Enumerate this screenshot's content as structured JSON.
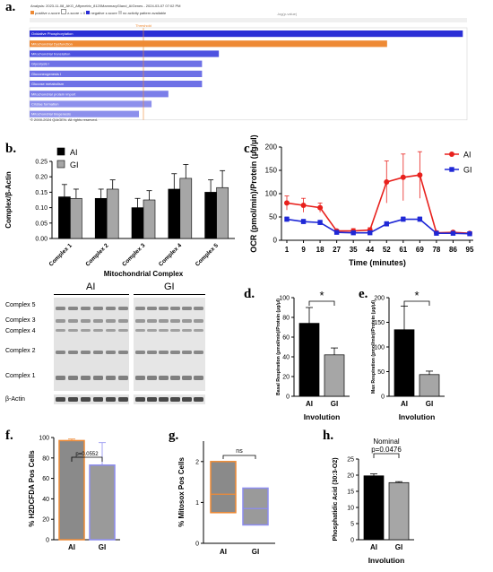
{
  "panel_labels": {
    "a": "a.",
    "b": "b.",
    "c": "c.",
    "d": "d.",
    "e": "e.",
    "f": "f.",
    "g": "g.",
    "h": "h."
  },
  "panel_a": {
    "header_line": "Analysis: 2023-11-08_AKG_Affymetrix_8120MammaryGland_AIGenes - 2024-03-07 07:02 PM",
    "legend_orange": "positive z-score",
    "legend_zero": "z-score = 0",
    "legend_blue": "negative z-score",
    "legend_none": "no activity pattern available",
    "axis_title": "-log(p-value)",
    "threshold_label": "Threshold",
    "copyright": "© 2000-2024 QIAGEN. All rights reserved.",
    "colors": {
      "blue": "#2b2fd6",
      "orange": "#ee8a35",
      "light1": "#4e52e0",
      "light2": "#6e71e6",
      "light3": "#8d90ec"
    }
  },
  "panel_b_text": {
    "ai_label": "AI",
    "gi_label": "GI",
    "blot_labels": [
      "Complex 5",
      "Complex 3",
      "Complex 4",
      "Complex 2",
      "Complex 1",
      "β-Actin"
    ]
  },
  "panel_d_text": {
    "sig": "*"
  },
  "panel_e_text": {
    "sig": "*"
  },
  "panel_f_text": {
    "pvalue": "p=0.0552"
  },
  "panel_g_text": {
    "ns": "ns"
  },
  "panel_h_text": {
    "nominal": "Nominal",
    "pvalue": "p=0.0476"
  },
  "chart_data": [
    {
      "id": "a",
      "type": "bar",
      "orientation": "horizontal",
      "categories": [
        "Oxidative Phosphorylation",
        "Mitochondrial Dysfunction",
        "Mitochondrial translation",
        "Glycolysis I",
        "Gluconeogenesis I",
        "Glucose metabolism",
        "Mitochondrial protein import",
        "Cristae formation",
        "Mitochondrial biogenesis"
      ],
      "values": [
        51.5,
        42.5,
        22.5,
        20.5,
        20.5,
        20.5,
        16.5,
        14.5,
        13
      ],
      "bar_colors": [
        "#2b2fd6",
        "#ee8a35",
        "#4e52e0",
        "#6e71e6",
        "#6e71e6",
        "#6e71e6",
        "#7b7ee9",
        "#8d90ec",
        "#8d90ec"
      ],
      "xlim": [
        0,
        52
      ]
    },
    {
      "id": "b",
      "type": "bar",
      "ylabel": "Complex/β-Actin",
      "xlabel": "Mitochondrial Complex",
      "categories": [
        "Complex 1",
        "Complex 2",
        "Complex 3",
        "Complex 4",
        "Complex 5"
      ],
      "series": [
        {
          "name": "AI",
          "color": "#000000",
          "values": [
            0.135,
            0.13,
            0.1,
            0.16,
            0.15
          ],
          "errors": [
            0.04,
            0.03,
            0.03,
            0.05,
            0.04
          ]
        },
        {
          "name": "GI",
          "color": "#a6a6a6",
          "values": [
            0.13,
            0.16,
            0.125,
            0.195,
            0.165
          ],
          "errors": [
            0.03,
            0.03,
            0.03,
            0.045,
            0.055
          ]
        }
      ],
      "ylim": [
        0,
        0.25
      ],
      "yticks": [
        "0.00",
        "0.05",
        "0.10",
        "0.15",
        "0.20",
        "0.25"
      ]
    },
    {
      "id": "c",
      "type": "line",
      "ylabel": "OCR (pmol/min)/Protein (µg/µl)",
      "xlabel": "Time (minutes)",
      "x": [
        "1",
        "9",
        "18",
        "27",
        "35",
        "44",
        "52",
        "61",
        "69",
        "78",
        "86",
        "95"
      ],
      "series": [
        {
          "name": "AI",
          "color": "#e8211d",
          "values": [
            80,
            75,
            70,
            20,
            20,
            22,
            125,
            135,
            140,
            16,
            17,
            15
          ],
          "errors": [
            15,
            15,
            10,
            3,
            5,
            5,
            45,
            50,
            50,
            4,
            3,
            2
          ]
        },
        {
          "name": "GI",
          "color": "#1f28d6",
          "values": [
            45,
            40,
            38,
            17,
            16,
            16,
            35,
            45,
            45,
            15,
            15,
            14
          ],
          "errors": [
            5,
            5,
            5,
            3,
            3,
            3,
            5,
            5,
            5,
            2,
            2,
            2
          ]
        }
      ],
      "ylim": [
        0,
        200
      ],
      "yticks": [
        "0",
        "50",
        "100",
        "150",
        "200"
      ]
    },
    {
      "id": "d",
      "type": "bar",
      "ylabel": "Basal Respiration (pmol/min)/Protein (µg/µl)",
      "xlabel": "Involution",
      "categories": [
        "AI",
        "GI"
      ],
      "values": [
        74,
        42
      ],
      "errors": [
        16,
        7
      ],
      "bar_colors": [
        "#000000",
        "#a6a6a6"
      ],
      "ylim": [
        0,
        100
      ],
      "yticks": [
        "0",
        "20",
        "40",
        "60",
        "80",
        "100"
      ]
    },
    {
      "id": "e",
      "type": "bar",
      "ylabel": "Max Respiration (pmol/min)/Protein (µg/µl)",
      "xlabel": "Involution",
      "categories": [
        "AI",
        "GI"
      ],
      "values": [
        135,
        44
      ],
      "errors": [
        48,
        7
      ],
      "bar_colors": [
        "#000000",
        "#a6a6a6"
      ],
      "ylim": [
        0,
        200
      ],
      "yticks": [
        "0",
        "50",
        "100",
        "150",
        "200"
      ]
    },
    {
      "id": "f",
      "type": "bar",
      "ylabel": "% H2DCFDA Pos Cells",
      "categories": [
        "AI",
        "GI"
      ],
      "values": [
        97,
        73
      ],
      "errors": [
        1.5,
        22
      ],
      "bar_colors": [
        "#8a8a8a",
        "#9a9a9a"
      ],
      "edge_colors": [
        "#ee8a35",
        "#8c8cf0"
      ],
      "ylim": [
        0,
        100
      ],
      "yticks": [
        "0",
        "20",
        "40",
        "60",
        "80",
        "100"
      ]
    },
    {
      "id": "g",
      "type": "box",
      "ylabel": "% Mitosox Pos Cells",
      "categories": [
        "AI",
        "GI"
      ],
      "boxes": [
        {
          "min": 0.75,
          "median": 1.2,
          "max": 2.0
        },
        {
          "min": 0.45,
          "median": 0.85,
          "max": 1.35
        }
      ],
      "fill_colors": [
        "#8a8a8a",
        "#9a9a9a"
      ],
      "edge_colors": [
        "#ee8a35",
        "#8c8cf0"
      ],
      "ylim": [
        0,
        2.5
      ],
      "yticks": [
        "0",
        "1",
        "2"
      ]
    },
    {
      "id": "h",
      "type": "bar",
      "ylabel": "Phosphatidic Acid (30:3-O2)",
      "xlabel": "Involution",
      "categories": [
        "AI",
        "GI"
      ],
      "values": [
        19.8,
        17.7
      ],
      "errors": [
        0.6,
        0.3
      ],
      "bar_colors": [
        "#000000",
        "#a6a6a6"
      ],
      "ylim": [
        0,
        25
      ],
      "yticks": [
        "0",
        "5",
        "10",
        "15",
        "20",
        "25"
      ]
    }
  ]
}
